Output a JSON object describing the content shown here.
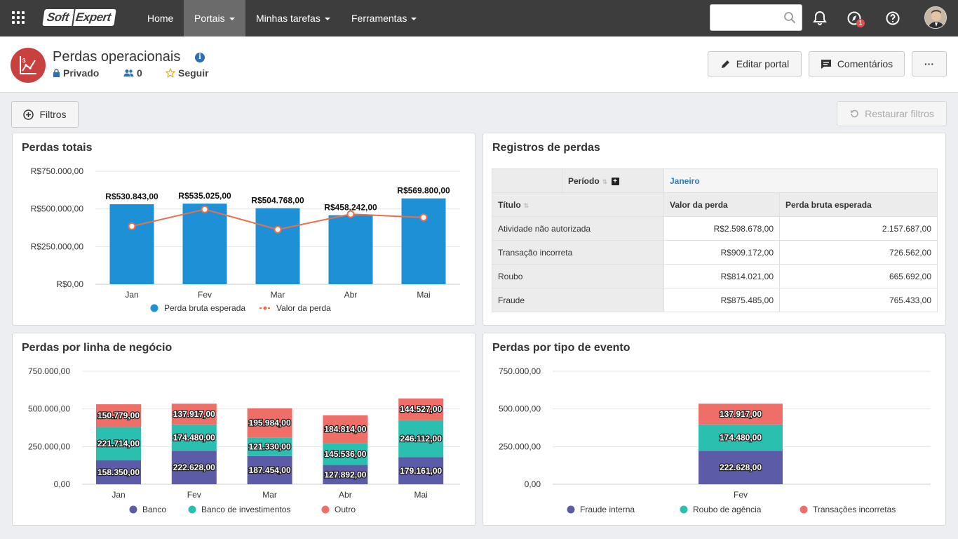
{
  "nav": {
    "home": "Home",
    "portais": "Portais",
    "tarefas": "Minhas tarefas",
    "ferramentas": "Ferramentas",
    "logo_soft": "Soft",
    "logo_expert": "Expert",
    "notification_badge": "1",
    "search_placeholder": ""
  },
  "header": {
    "title": "Perdas operacionais",
    "privacy": "Privado",
    "members": "0",
    "follow": "Seguir",
    "edit_button": "Editar portal",
    "comments_button": "Comentários",
    "more_button": "···"
  },
  "toolbar": {
    "filters": "Filtros",
    "restore": "Restaurar filtros"
  },
  "panels": {
    "totals_title": "Perdas totais",
    "records_title": "Registros de perdas",
    "business_title": "Perdas por linha de negócio",
    "event_title": "Perdas por tipo de evento"
  },
  "records_table": {
    "period_label": "Período",
    "period_value": "Janeiro",
    "col_title": "Título",
    "col_value": "Valor da perda",
    "col_gross": "Perda bruta esperada",
    "rows": [
      {
        "title": "Atividade não autorizada",
        "value": "R$2.598.678,00",
        "gross": "2.157.687,00"
      },
      {
        "title": "Transação incorreta",
        "value": "R$909.172,00",
        "gross": "726.562,00"
      },
      {
        "title": "Roubo",
        "value": "R$814.021,00",
        "gross": "665.692,00"
      },
      {
        "title": "Fraude",
        "value": "R$875.485,00",
        "gross": "765.433,00"
      }
    ]
  },
  "colors": {
    "bar_blue": "#1e90d6",
    "line_orange": "#e8704d",
    "banco": "#5b5ba8",
    "investimentos": "#2bbfb0",
    "outro": "#ef6e68"
  },
  "chart_data": [
    {
      "type": "bar",
      "categories": [
        "Jan",
        "Fev",
        "Mar",
        "Abr",
        "Mai"
      ],
      "ylim": [
        0,
        750000
      ],
      "yticks": [
        "R$0,00",
        "R$250.000,00",
        "R$500.000,00",
        "R$750.000,00"
      ],
      "series": [
        {
          "name": "Perda bruta esperada",
          "kind": "bar",
          "values": [
            530843,
            535025,
            504768,
            458242,
            569800
          ],
          "labels": [
            "R$530.843,00",
            "R$535.025,00",
            "R$504.768,00",
            "R$458.242,00",
            "R$569.800,00"
          ]
        },
        {
          "name": "Valor da perda",
          "kind": "line",
          "values": [
            385000,
            497000,
            363000,
            465000,
            443000
          ]
        }
      ],
      "legend": "bottom"
    },
    {
      "type": "bar",
      "stacked": true,
      "categories": [
        "Jan",
        "Fev",
        "Mar",
        "Abr",
        "Mai"
      ],
      "ylim": [
        0,
        750000
      ],
      "yticks": [
        "0,00",
        "250.000,00",
        "500.000,00",
        "750.000,00"
      ],
      "series": [
        {
          "name": "Banco",
          "values": [
            158350,
            222628,
            187454,
            127892,
            179161
          ],
          "labels": [
            "158.350,00",
            "222.628,00",
            "187.454,00",
            "127.892,00",
            "179.161,00"
          ]
        },
        {
          "name": "Banco de investimentos",
          "values": [
            221714,
            174480,
            121330,
            145536,
            246112
          ],
          "labels": [
            "221.714,00",
            "174.480,00",
            "121.330,00",
            "145.536,00",
            "246.112,00"
          ]
        },
        {
          "name": "Outro",
          "values": [
            150779,
            137917,
            195984,
            184814,
            144527
          ],
          "labels": [
            "150.779,00",
            "137.917,00",
            "195.984,00",
            "184.814,00",
            "144.527,00"
          ]
        }
      ],
      "legend": "bottom"
    },
    {
      "type": "bar",
      "stacked": true,
      "categories": [
        "Fev"
      ],
      "ylim": [
        0,
        750000
      ],
      "yticks": [
        "0,00",
        "250.000,00",
        "500.000,00",
        "750.000,00"
      ],
      "series": [
        {
          "name": "Fraude interna",
          "values": [
            222628
          ],
          "labels": [
            "222.628,00"
          ]
        },
        {
          "name": "Roubo de agência",
          "values": [
            174480
          ],
          "labels": [
            "174.480,00"
          ]
        },
        {
          "name": "Transações incorretas",
          "values": [
            137917
          ],
          "labels": [
            "137.917,00"
          ]
        }
      ],
      "legend": "bottom"
    }
  ]
}
